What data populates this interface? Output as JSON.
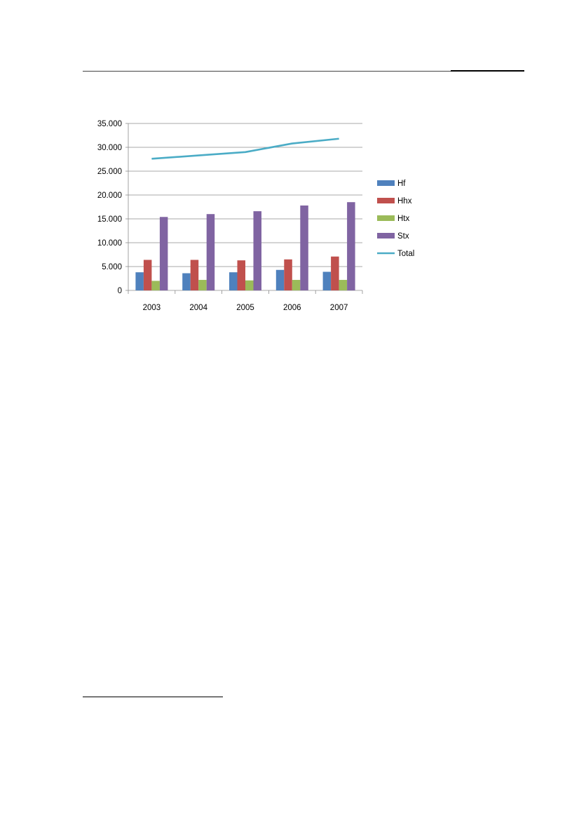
{
  "chart_data": {
    "type": "bar",
    "categories": [
      "2003",
      "2004",
      "2005",
      "2006",
      "2007"
    ],
    "series": [
      {
        "name": "Hf",
        "type": "bar",
        "color": "#4F81BD",
        "values": [
          3800,
          3600,
          3800,
          4300,
          3900
        ]
      },
      {
        "name": "Hhx",
        "type": "bar",
        "color": "#C0504D",
        "values": [
          6400,
          6400,
          6300,
          6500,
          7100
        ]
      },
      {
        "name": "Htx",
        "type": "bar",
        "color": "#9BBB59",
        "values": [
          2000,
          2200,
          2100,
          2200,
          2200
        ]
      },
      {
        "name": "Stx",
        "type": "bar",
        "color": "#8064A2",
        "values": [
          15400,
          16000,
          16600,
          17800,
          18500
        ]
      },
      {
        "name": "Total",
        "type": "line",
        "color": "#4BACC6",
        "values": [
          27600,
          28300,
          29000,
          30800,
          31800
        ]
      }
    ],
    "yticks": [
      "0",
      "5.000",
      "10.000",
      "15.000",
      "20.000",
      "25.000",
      "30.000",
      "35.000"
    ],
    "ylim": [
      0,
      35000
    ],
    "grid": true,
    "legend_position": "right"
  }
}
